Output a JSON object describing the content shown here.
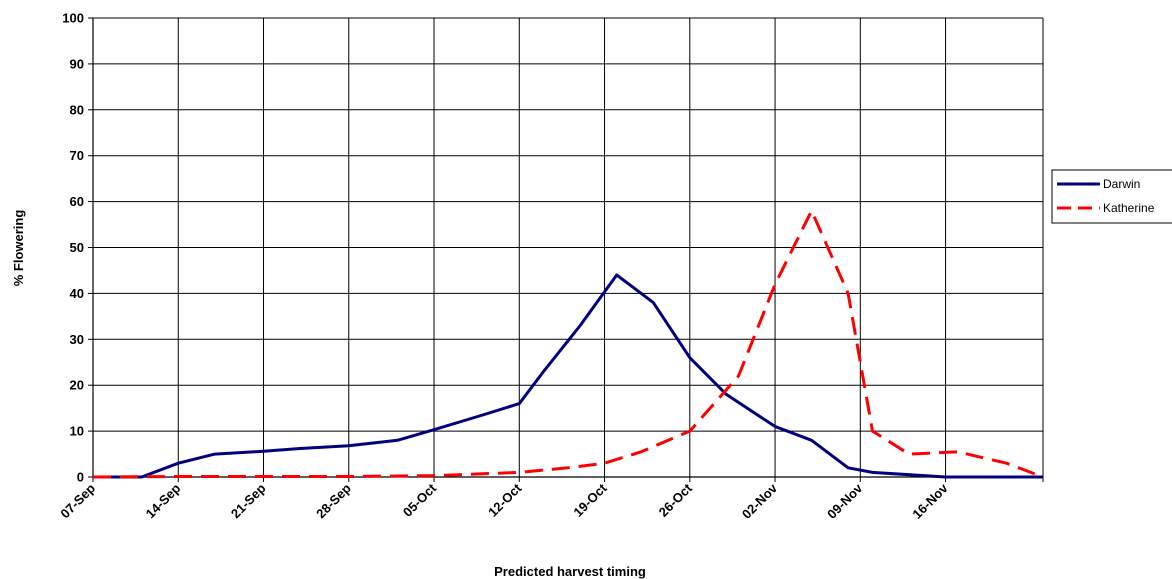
{
  "chart_data": {
    "type": "line",
    "title": "",
    "xlabel": "Predicted harvest timing",
    "ylabel": "% Flowering",
    "ylim": [
      0,
      100
    ],
    "yticks": [
      0,
      10,
      20,
      30,
      40,
      50,
      60,
      70,
      80,
      90,
      100
    ],
    "xlim": [
      "07-Sep",
      "24-Nov"
    ],
    "xticks": [
      "07-Sep",
      "14-Sep",
      "21-Sep",
      "28-Sep",
      "05-Oct",
      "12-Oct",
      "19-Oct",
      "26-Oct",
      "02-Nov",
      "09-Nov",
      "16-Nov"
    ],
    "grid": true,
    "legend_position": "right",
    "series": [
      {
        "name": "Darwin",
        "color": "#00007F",
        "style": "solid",
        "points": [
          [
            "07-Sep",
            0
          ],
          [
            "11-Sep",
            0
          ],
          [
            "14-Sep",
            3
          ],
          [
            "17-Sep",
            5
          ],
          [
            "21-Sep",
            5.6
          ],
          [
            "24-Sep",
            6.2
          ],
          [
            "28-Sep",
            6.8
          ],
          [
            "02-Oct",
            8
          ],
          [
            "05-Oct",
            10.3
          ],
          [
            "09-Oct",
            13.5
          ],
          [
            "12-Oct",
            16
          ],
          [
            "14-Oct",
            23
          ],
          [
            "17-Oct",
            33
          ],
          [
            "20-Oct",
            44
          ],
          [
            "23-Oct",
            38
          ],
          [
            "26-Oct",
            26
          ],
          [
            "29-Oct",
            18
          ],
          [
            "02-Nov",
            11
          ],
          [
            "05-Nov",
            8
          ],
          [
            "08-Nov",
            2
          ],
          [
            "10-Nov",
            1
          ],
          [
            "16-Nov",
            0
          ],
          [
            "24-Nov",
            0
          ]
        ]
      },
      {
        "name": "Katherine",
        "color": "#FF0000",
        "style": "dashed",
        "points": [
          [
            "07-Sep",
            0
          ],
          [
            "14-Sep",
            0.1
          ],
          [
            "21-Sep",
            0.1
          ],
          [
            "28-Sep",
            0.1
          ],
          [
            "05-Oct",
            0.3
          ],
          [
            "09-Oct",
            0.7
          ],
          [
            "12-Oct",
            1
          ],
          [
            "16-Oct",
            2
          ],
          [
            "19-Oct",
            3
          ],
          [
            "22-Oct",
            5.5
          ],
          [
            "26-Oct",
            10
          ],
          [
            "30-Oct",
            22
          ],
          [
            "02-Nov",
            42
          ],
          [
            "05-Nov",
            58
          ],
          [
            "08-Nov",
            40
          ],
          [
            "10-Nov",
            10
          ],
          [
            "13-Nov",
            5
          ],
          [
            "17-Nov",
            5.5
          ],
          [
            "21-Nov",
            3
          ],
          [
            "24-Nov",
            0
          ]
        ]
      }
    ]
  }
}
